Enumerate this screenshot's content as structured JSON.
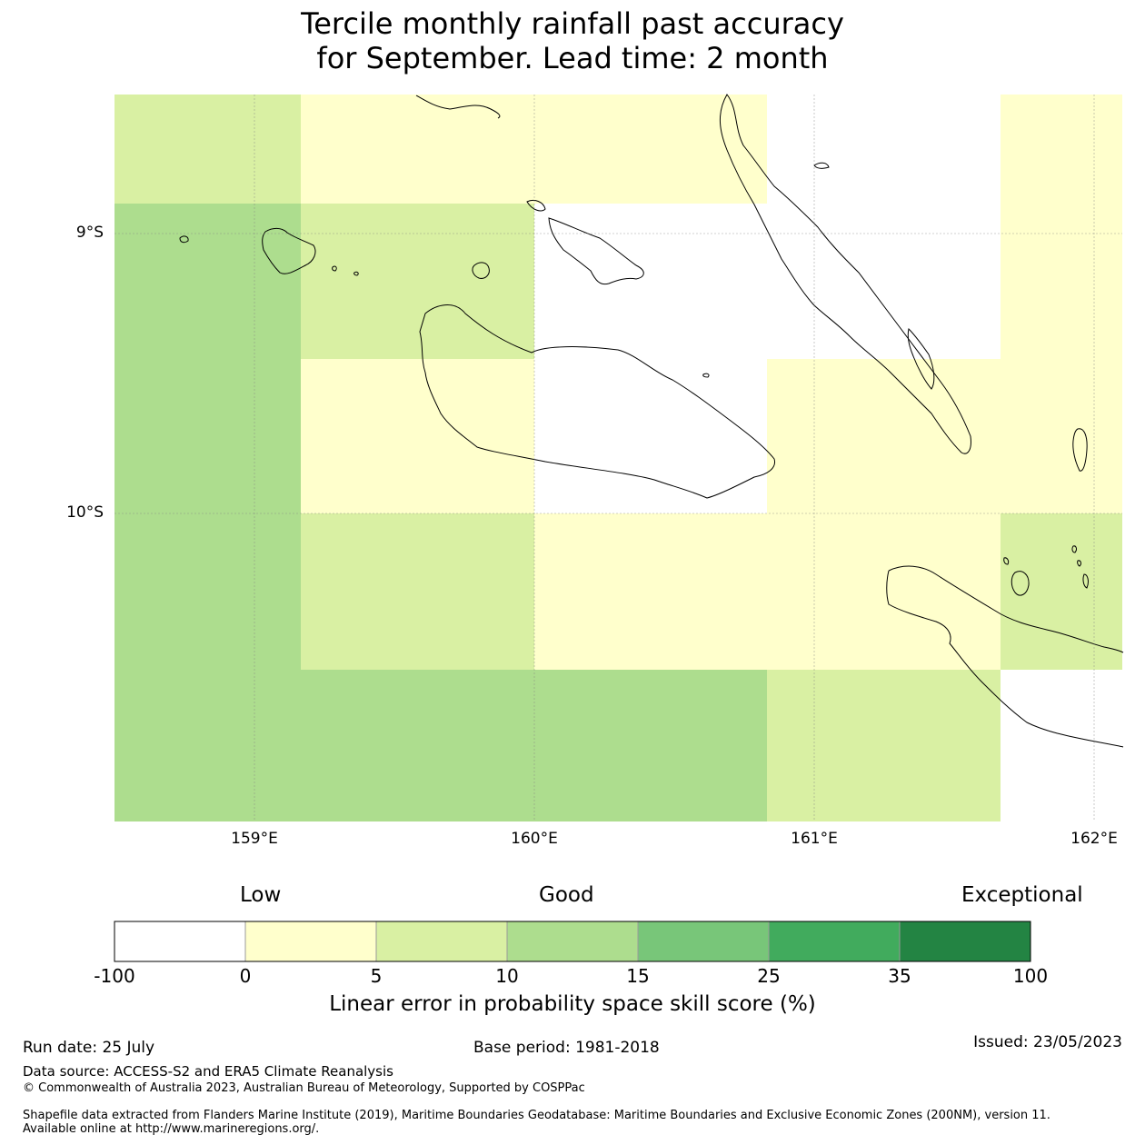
{
  "title": {
    "line1": "Tercile monthly rainfall past accuracy",
    "line2": "for September. Lead time: 2 month"
  },
  "map": {
    "lat_labels": [
      "9°S",
      "10°S"
    ],
    "lon_labels": [
      "159°E",
      "160°E",
      "161°E",
      "162°E"
    ],
    "grid_cells": [
      {
        "row": 0,
        "col": 0,
        "class": "5 to 10"
      },
      {
        "row": 0,
        "col": 1,
        "class": "0 to 5"
      },
      {
        "row": 0,
        "col": 2,
        "class": "0 to 5"
      },
      {
        "row": 0,
        "col": 3,
        "class": "-100 to 0"
      },
      {
        "row": 0,
        "col": 4,
        "class": "0 to 5"
      },
      {
        "row": 1,
        "col": 0,
        "class": "10 to 15"
      },
      {
        "row": 1,
        "col": 1,
        "class": "5 to 10"
      },
      {
        "row": 1,
        "col": 2,
        "class": "-100 to 0"
      },
      {
        "row": 1,
        "col": 3,
        "class": "-100 to 0"
      },
      {
        "row": 1,
        "col": 4,
        "class": "0 to 5"
      },
      {
        "row": 2,
        "col": 0,
        "class": "10 to 15"
      },
      {
        "row": 2,
        "col": 1,
        "class": "0 to 5"
      },
      {
        "row": 2,
        "col": 2,
        "class": "-100 to 0"
      },
      {
        "row": 2,
        "col": 3,
        "class": "0 to 5"
      },
      {
        "row": 2,
        "col": 4,
        "class": "0 to 5"
      },
      {
        "row": 3,
        "col": 0,
        "class": "10 to 15"
      },
      {
        "row": 3,
        "col": 1,
        "class": "5 to 10"
      },
      {
        "row": 3,
        "col": 2,
        "class": "0 to 5"
      },
      {
        "row": 3,
        "col": 3,
        "class": "0 to 5"
      },
      {
        "row": 3,
        "col": 4,
        "class": "5 to 10"
      },
      {
        "row": 4,
        "col": 0,
        "class": "10 to 15"
      },
      {
        "row": 4,
        "col": 1,
        "class": "10 to 15"
      },
      {
        "row": 4,
        "col": 2,
        "class": "10 to 15"
      },
      {
        "row": 4,
        "col": 3,
        "class": "5 to 10"
      },
      {
        "row": 4,
        "col": 4,
        "class": "-100 to 0"
      }
    ]
  },
  "colorbar": {
    "categories": {
      "low": "Low",
      "good": "Good",
      "exceptional": "Exceptional"
    },
    "ticks": [
      "-100",
      "0",
      "5",
      "10",
      "15",
      "25",
      "35",
      "100"
    ],
    "colors": [
      "#ffffff",
      "#ffffcc",
      "#d9f0a3",
      "#addd8e",
      "#78c679",
      "#41ab5d",
      "#238443"
    ],
    "title": "Linear error in probability space skill score (%)"
  },
  "footer": {
    "run_date": "Run date: 25 July",
    "base_period": "Base period: 1981-2018",
    "issued": "Issued: 23/05/2023",
    "data_source": "Data source: ACCESS-S2 and ERA5 Climate Reanalysis",
    "copyright": "© Commonwealth of Australia 2023, Australian Bureau of Meteorology, Supported by COSPPac",
    "shapefile": "Shapefile data extracted from Flanders Marine Institute (2019), Maritime Boundaries Geodatabase: Maritime Boundaries and Exclusive Economic Zones (200NM), version 11. Available online at http://www.marineregions.org/."
  }
}
